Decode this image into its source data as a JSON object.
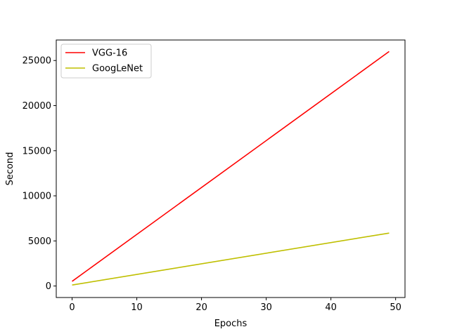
{
  "chart_data": {
    "type": "line",
    "title": "",
    "xlabel": "Epochs",
    "ylabel": "Second",
    "xlim": [
      -2.45,
      51.45
    ],
    "ylim": [
      -1275,
      27275
    ],
    "xticks": [
      0,
      10,
      20,
      30,
      40,
      50
    ],
    "yticks": [
      0,
      5000,
      10000,
      15000,
      20000,
      25000
    ],
    "grid": false,
    "legend_position": "upper-left",
    "series": [
      {
        "name": "VGG-16",
        "color": "#ff0000",
        "x": [
          0,
          49
        ],
        "y": [
          520,
          26000
        ]
      },
      {
        "name": "GoogLeNet",
        "color": "#bfbf00",
        "x": [
          0,
          49
        ],
        "y": [
          110,
          5870
        ]
      }
    ]
  }
}
